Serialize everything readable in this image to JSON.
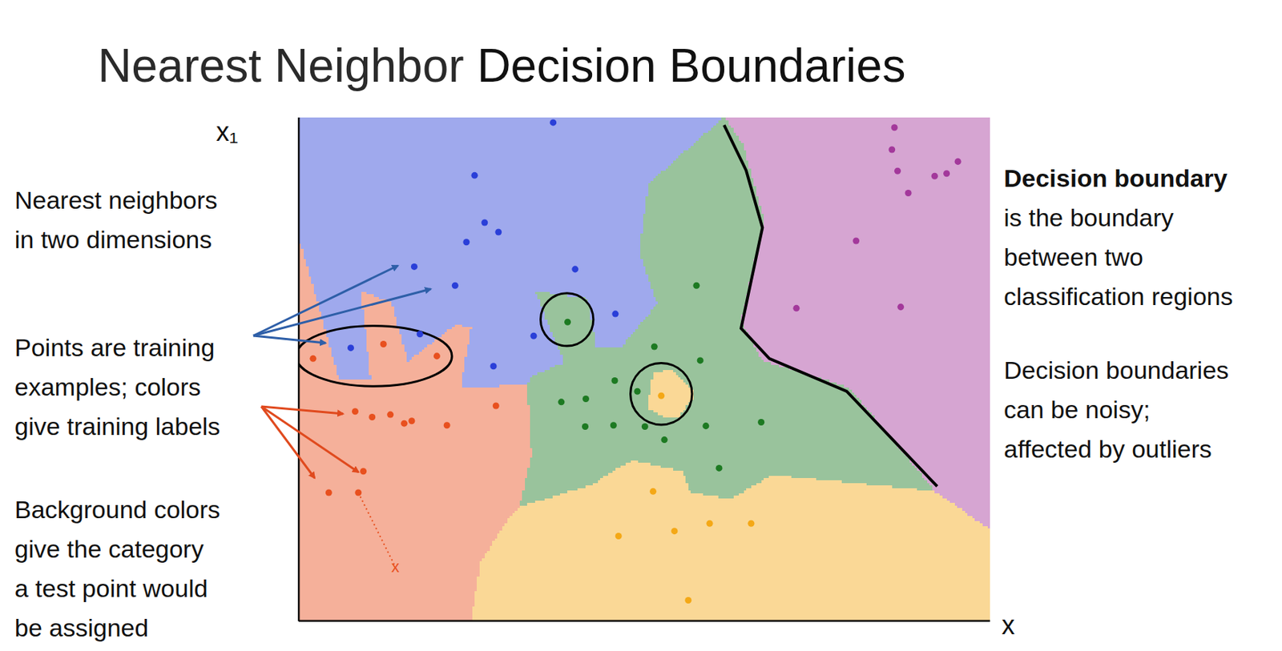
{
  "slide": {
    "title": [
      "Nearest Neighbor",
      "Decision Boundaries"
    ],
    "left_notes": [
      [
        "Nearest neighbors",
        "in two dimensions"
      ],
      [
        "Points are training",
        "examples; colors",
        "give training labels"
      ],
      [
        "Background colors",
        "give the category",
        "a test point would",
        "be assigned"
      ]
    ],
    "right_notes": [
      {
        "heading": "Decision boundary",
        "lines": [
          "is the boundary",
          "between two",
          "classification regions"
        ]
      },
      {
        "lines": [
          "Decision boundaries",
          "can be noisy;",
          "affected by outliers"
        ]
      }
    ]
  },
  "chart_data": {
    "type": "scatter",
    "x_label": "x",
    "y_label": "x₁",
    "xlim": [
      0,
      110
    ],
    "ylim": [
      0,
      80
    ],
    "tick_labels": false,
    "series": [
      {
        "color": "#2a3fd8",
        "marker": "circle",
        "x": [
          40.5,
          28.0,
          29.6,
          26.7,
          31.8,
          18.4,
          24.9,
          44.0,
          50.4,
          37.4,
          19.3,
          8.3,
          31.0
        ],
        "y": [
          79.2,
          70.8,
          63.3,
          60.2,
          61.8,
          56.3,
          53.3,
          55.9,
          48.8,
          45.3,
          45.6,
          43.4,
          40.5
        ]
      },
      {
        "color": "#e8501e",
        "marker": "circle",
        "x": [
          2.3,
          13.5,
          22.0,
          9.0,
          11.7,
          14.6,
          16.8,
          18.0,
          23.6,
          31.4,
          10.3,
          4.8,
          9.5
        ],
        "y": [
          41.7,
          44.0,
          42.1,
          33.3,
          32.4,
          32.8,
          31.4,
          31.8,
          31.1,
          34.2,
          23.8,
          20.4,
          20.4
        ]
      },
      {
        "color": "#1d7a22",
        "marker": "circle",
        "x": [
          63.3,
          42.8,
          56.6,
          63.9,
          50.3,
          41.8,
          45.7,
          53.9,
          45.6,
          50.1,
          55.1,
          64.8,
          73.6,
          58.2,
          66.9
        ],
        "y": [
          53.3,
          47.5,
          43.6,
          41.4,
          38.2,
          34.8,
          35.3,
          36.5,
          30.9,
          31.1,
          30.9,
          31.0,
          31.6,
          28.8,
          24.3
        ]
      },
      {
        "color": "#f4a816",
        "marker": "circle",
        "x": [
          57.7,
          56.4,
          50.9,
          59.8,
          65.4,
          72.0,
          62.0
        ],
        "y": [
          35.8,
          20.6,
          13.5,
          14.3,
          15.5,
          15.5,
          3.3
        ]
      },
      {
        "color": "#a3389b",
        "marker": "circle",
        "x": [
          94.8,
          94.4,
          95.3,
          97.0,
          101.2,
          103.1,
          104.9,
          88.7,
          79.2,
          95.8
        ],
        "y": [
          78.4,
          74.9,
          71.5,
          68.0,
          70.7,
          71.1,
          73.0,
          60.4,
          49.7,
          49.9
        ]
      }
    ],
    "test_point": {
      "x": 15.4,
      "y": 8.6,
      "label": "x",
      "color": "#e8501e"
    },
    "highlighted_boundary": {
      "x": [
        67.7,
        71.2,
        73.8,
        70.4,
        74.9,
        87.2,
        101.6
      ],
      "y": [
        78.8,
        71.6,
        62.5,
        46.5,
        41.7,
        36.5,
        21.4
      ]
    },
    "circled": [
      {
        "x": 12.0,
        "y": 42.1,
        "rx": 12.4,
        "ry": 4.8
      },
      {
        "x": 42.7,
        "y": 47.9,
        "rx": 4.2,
        "ry": 4.2
      },
      {
        "x": 57.7,
        "y": 36.1,
        "rx": 4.9,
        "ry": 4.9
      }
    ]
  }
}
